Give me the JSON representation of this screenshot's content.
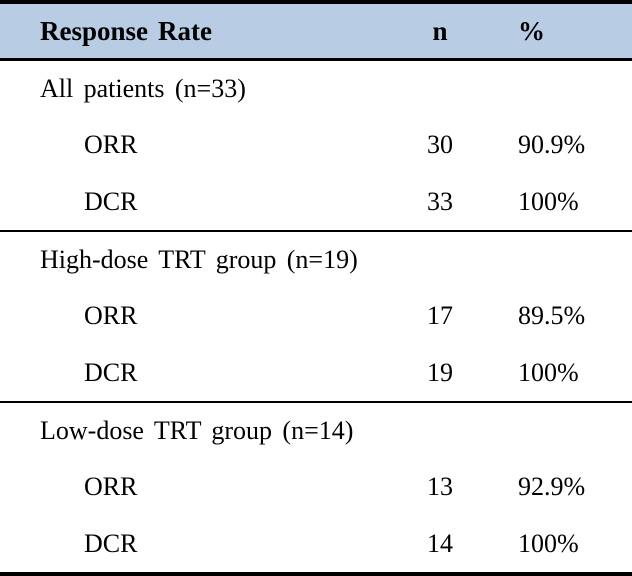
{
  "table": {
    "header": {
      "label": "Response Rate",
      "n": "n",
      "pct": "%"
    },
    "sections": [
      {
        "group_label": "All patients (n=33)",
        "rows": [
          {
            "label": "ORR",
            "n": "30",
            "pct": "90.9%"
          },
          {
            "label": "DCR",
            "n": "33",
            "pct": "100%"
          }
        ]
      },
      {
        "group_label": "High-dose TRT group (n=19)",
        "rows": [
          {
            "label": "ORR",
            "n": "17",
            "pct": "89.5%"
          },
          {
            "label": "DCR",
            "n": "19",
            "pct": "100%"
          }
        ]
      },
      {
        "group_label": "Low-dose TRT group (n=14)",
        "rows": [
          {
            "label": "ORR",
            "n": "13",
            "pct": "92.9%"
          },
          {
            "label": "DCR",
            "n": "14",
            "pct": "100%"
          }
        ]
      }
    ]
  },
  "colors": {
    "header_background": "#B8CCE4",
    "border": "#000000",
    "text": "#000000"
  }
}
